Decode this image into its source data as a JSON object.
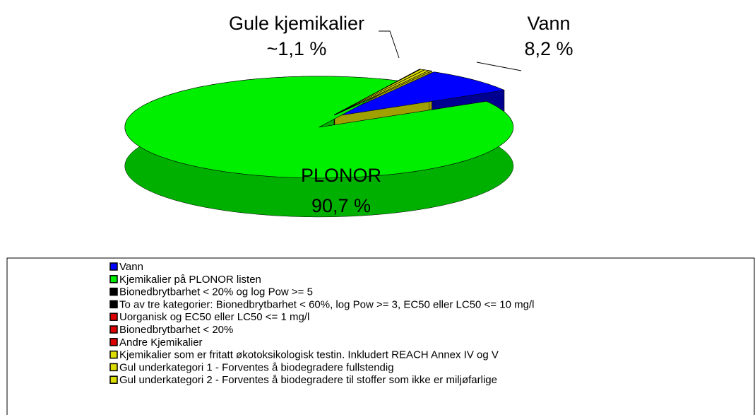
{
  "chart_data": {
    "type": "pie3d",
    "categories": [
      "Vann",
      "Kjemikalier på PLONOR listen",
      "Bionedbrytbarhet < 20% og log Pow >= 5",
      "To av tre kategorier: Bionedbrytbarhet < 60%, log Pow >= 3, EC50 eller LC50 <= 10 mg/l",
      "Uorganisk og EC50 eller LC50 <= 1 mg/l",
      "Bionedbrytbarhet < 20%",
      "Andre Kjemikalier",
      "Kjemikalier som er fritatt økotoksikologisk testin. Inkludert REACH Annex IV og V",
      "Gul underkategori 1 - Forventes å biodegradere fullstendig",
      "Gul underkategori 2 - Forventes å biodegradere til stoffer som ikke er miljøfarlige"
    ],
    "values": [
      8.2,
      90.7,
      0.05,
      0.05,
      0,
      0,
      0,
      0.35,
      0.4,
      0.25
    ],
    "slice_names": [
      "Vann",
      "PLONOR",
      null,
      null,
      null,
      null,
      null,
      null,
      null,
      null
    ],
    "value_labels": [
      "8,2 %",
      "90,7 %",
      null,
      null,
      null,
      null,
      null,
      null,
      null,
      null
    ],
    "colors": [
      "#0000ff",
      "#00ee00",
      "#000000",
      "#000000",
      "#dd0000",
      "#dd0000",
      "#dd0000",
      "#dddd00",
      "#dddd00",
      "#dddd00"
    ],
    "side_colors": [
      "#000090",
      "#00b000",
      "#000000",
      "#000000",
      "#900000",
      "#900000",
      "#900000",
      "#a0a000",
      "#a0a000",
      "#a0a000"
    ],
    "annotations": [
      {
        "text": "Gule kjemikalier",
        "value_label": "~1,1 %"
      }
    ]
  }
}
